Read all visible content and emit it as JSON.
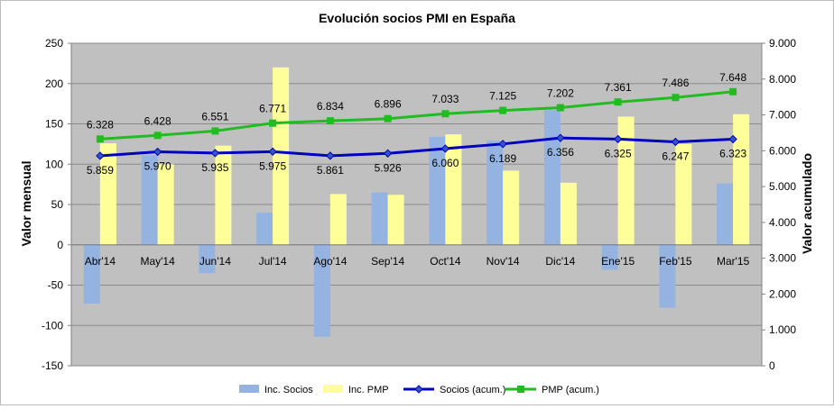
{
  "chart_data": {
    "type": "bar",
    "title": "Evolución socios PMI en España",
    "ylabel": "Valor mensual",
    "y2label": "Valor acumulado",
    "categories": [
      "Abr'14",
      "May'14",
      "Jun'14",
      "Jul'14",
      "Ago'14",
      "Sep'14",
      "Oct'14",
      "Nov'14",
      "Dic'14",
      "Ene'15",
      "Feb'15",
      "Mar'15"
    ],
    "ylim": [
      -150,
      250
    ],
    "yticks": [
      "-150",
      "-100",
      "-50",
      "0",
      "50",
      "100",
      "150",
      "200",
      "250"
    ],
    "y2lim": [
      0,
      9000
    ],
    "y2ticks": [
      "0",
      "1.000",
      "2.000",
      "3.000",
      "4.000",
      "5.000",
      "6.000",
      "7.000",
      "8.000",
      "9.000"
    ],
    "grid": true,
    "legend_position": "bottom",
    "series": [
      {
        "name": "Inc. Socios",
        "kind": "bar",
        "axis": "left",
        "color": "#95b3e0",
        "values": [
          -73,
          111,
          -35,
          40,
          -114,
          65,
          134,
          129,
          167,
          -31,
          -78,
          76
        ]
      },
      {
        "name": "Inc. PMP",
        "kind": "bar",
        "axis": "left",
        "color": "#ffff99",
        "values": [
          126,
          100,
          123,
          220,
          63,
          62,
          137,
          92,
          77,
          159,
          125,
          162
        ]
      },
      {
        "name": "Socios (acum.)",
        "kind": "line",
        "axis": "right",
        "color": "#0000bf",
        "marker": "diamond",
        "values": [
          5859,
          5970,
          5935,
          5975,
          5861,
          5926,
          6060,
          6189,
          6356,
          6325,
          6247,
          6323
        ],
        "labels": [
          "5.859",
          "5.970",
          "5.935",
          "5.975",
          "5.861",
          "5.926",
          "6.060",
          "6.189",
          "6.356",
          "6.325",
          "6.247",
          "6.323"
        ]
      },
      {
        "name": "PMP (acum.)",
        "kind": "line",
        "axis": "right",
        "color": "#22bb22",
        "marker": "square",
        "values": [
          6328,
          6428,
          6551,
          6771,
          6834,
          6896,
          7033,
          7125,
          7202,
          7361,
          7486,
          7648
        ],
        "labels": [
          "6.328",
          "6.428",
          "6.551",
          "6.771",
          "6.834",
          "6.896",
          "7.033",
          "7.125",
          "7.202",
          "7.361",
          "7.486",
          "7.648"
        ]
      }
    ]
  }
}
